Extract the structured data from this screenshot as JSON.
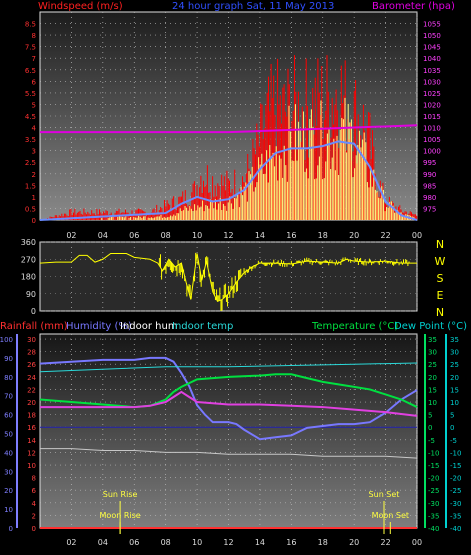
{
  "colors": {
    "wind": "#ff0000",
    "gust": "#ffff00",
    "avg": "#6a8cff",
    "baro": "#e000e0",
    "dir": "#ffff00",
    "rain": "#ff3030",
    "humidity": "#7878ff",
    "indoor_hum": "#c8c8c8",
    "indoor_temp": "#2ad8d8",
    "temp": "#00e040",
    "dew": "#e040e0",
    "axis_left": "#7f7fff",
    "axis_temp": "#00e060",
    "axis_dew": "#00d0d0"
  },
  "chart_data": [
    {
      "id": "wind",
      "type": "bar",
      "title": "24 hour graph Sat, 11 May 2013",
      "ylabel": "Windspeed (m/s)",
      "ylabel_right": "Barometer (hpa)",
      "ylim": [
        0,
        9
      ],
      "yticks": [
        0,
        0.5,
        1,
        1.5,
        2,
        2.5,
        3,
        3.5,
        4,
        4.5,
        5,
        5.5,
        6,
        6.5,
        7,
        7.5,
        8,
        8.5
      ],
      "y2lim": [
        970,
        1060
      ],
      "y2ticks": [
        975,
        980,
        985,
        990,
        995,
        1000,
        1005,
        1010,
        1015,
        1020,
        1025,
        1030,
        1035,
        1040,
        1045,
        1050,
        1055
      ],
      "xticks": [
        "02",
        "04",
        "06",
        "08",
        "10",
        "12",
        "14",
        "16",
        "18",
        "20",
        "22",
        "00"
      ],
      "xlim": [
        0,
        24
      ],
      "gust_envelope": [
        [
          0,
          0
        ],
        [
          2,
          0.5
        ],
        [
          4,
          0.5
        ],
        [
          6,
          0.5
        ],
        [
          7,
          0.5
        ],
        [
          8,
          0.9
        ],
        [
          9,
          1.3
        ],
        [
          9.8,
          1.8
        ],
        [
          10.3,
          3.0
        ],
        [
          11,
          2.5
        ],
        [
          12,
          2.2
        ],
        [
          13,
          2.6
        ],
        [
          13.5,
          3.6
        ],
        [
          14,
          5.0
        ],
        [
          14.5,
          6.5
        ],
        [
          15,
          7.2
        ],
        [
          15.5,
          6.8
        ],
        [
          16,
          7.3
        ],
        [
          16.5,
          7.0
        ],
        [
          17,
          7.2
        ],
        [
          17.5,
          7.4
        ],
        [
          18,
          7.5
        ],
        [
          18.5,
          7.8
        ],
        [
          19,
          8.5
        ],
        [
          19.5,
          7.2
        ],
        [
          20,
          6.8
        ],
        [
          20.5,
          6.3
        ],
        [
          21,
          4.8
        ],
        [
          21.5,
          2.5
        ],
        [
          22,
          1.2
        ],
        [
          23,
          0.6
        ],
        [
          24,
          0.3
        ]
      ],
      "speed_envelope": [
        [
          0,
          0
        ],
        [
          8,
          0.2
        ],
        [
          9,
          0.5
        ],
        [
          10,
          0.7
        ],
        [
          11,
          0.9
        ],
        [
          12,
          1.0
        ],
        [
          13,
          1.5
        ],
        [
          14,
          2.5
        ],
        [
          15,
          3.5
        ],
        [
          16,
          4.3
        ],
        [
          17,
          4.4
        ],
        [
          18,
          4.3
        ],
        [
          19,
          4.6
        ],
        [
          20,
          4.5
        ],
        [
          21,
          2.5
        ],
        [
          22,
          0.9
        ],
        [
          23,
          0.3
        ],
        [
          24,
          0.1
        ]
      ],
      "avg_envelope": [
        [
          0,
          0
        ],
        [
          8,
          0.3
        ],
        [
          9,
          0.7
        ],
        [
          10,
          1.0
        ],
        [
          11,
          0.8
        ],
        [
          12,
          0.9
        ],
        [
          13,
          1.3
        ],
        [
          14,
          2.2
        ],
        [
          15,
          2.9
        ],
        [
          16,
          3.1
        ],
        [
          17,
          3.1
        ],
        [
          18,
          3.2
        ],
        [
          19,
          3.4
        ],
        [
          20,
          3.3
        ],
        [
          21,
          2.3
        ],
        [
          22,
          0.8
        ],
        [
          23,
          0.2
        ],
        [
          24,
          0
        ]
      ],
      "barometer": [
        [
          0,
          1008
        ],
        [
          6,
          1008
        ],
        [
          12,
          1008
        ],
        [
          16,
          1009
        ],
        [
          20,
          1010
        ],
        [
          24,
          1011
        ]
      ]
    },
    {
      "id": "direction",
      "type": "line",
      "ylim": [
        0,
        360
      ],
      "yticks": [
        0,
        90,
        180,
        270,
        360
      ],
      "compass": [
        "N",
        "W",
        "S",
        "E",
        "N"
      ],
      "xlim": [
        0,
        24
      ],
      "points": [
        [
          0,
          250
        ],
        [
          1,
          255
        ],
        [
          2,
          255
        ],
        [
          2.5,
          290
        ],
        [
          3,
          290
        ],
        [
          3.5,
          255
        ],
        [
          4,
          270
        ],
        [
          4.5,
          300
        ],
        [
          5.5,
          300
        ],
        [
          6,
          280
        ],
        [
          7,
          270
        ],
        [
          7.5,
          250
        ],
        [
          7.8,
          210
        ],
        [
          8.2,
          270
        ],
        [
          8.6,
          230
        ],
        [
          9,
          250
        ],
        [
          9.3,
          150
        ],
        [
          9.6,
          60
        ],
        [
          10,
          300
        ],
        [
          10.3,
          160
        ],
        [
          10.6,
          260
        ],
        [
          11,
          100
        ],
        [
          11.3,
          50
        ],
        [
          11.6,
          60
        ],
        [
          12,
          90
        ],
        [
          12.5,
          150
        ],
        [
          13,
          200
        ],
        [
          13.5,
          230
        ],
        [
          14,
          250
        ],
        [
          15,
          250
        ],
        [
          16,
          245
        ],
        [
          17,
          260
        ],
        [
          18,
          255
        ],
        [
          19,
          250
        ],
        [
          19.5,
          270
        ],
        [
          20,
          260
        ],
        [
          21,
          255
        ],
        [
          22,
          260
        ],
        [
          23,
          250
        ],
        [
          24,
          250
        ]
      ]
    },
    {
      "id": "temperature",
      "type": "line",
      "title": "",
      "labels": {
        "rain": "Rainfall (mm)",
        "humidity": "Humidity (%)",
        "indoor_hum": "Indoor hum",
        "indoor_temp": "Indoor temp",
        "temp": "Temperature (°C)",
        "dew": "Dew Point (°C)"
      },
      "left_ticks": [
        0,
        10,
        20,
        30,
        40,
        50,
        60,
        70,
        80,
        90,
        100
      ],
      "rain_ticks": [
        0,
        2,
        4,
        6,
        8,
        10,
        12,
        14,
        16,
        18,
        20,
        22,
        24,
        26,
        28,
        30
      ],
      "temp_ticks": [
        -40,
        -35,
        -30,
        -25,
        -20,
        -15,
        -10,
        -5,
        0,
        5,
        10,
        15,
        20,
        25,
        30,
        35
      ],
      "ylim_temp": [
        -40,
        37
      ],
      "xlim": [
        0,
        24
      ],
      "events": [
        {
          "label": "Sun Rise",
          "x": 5.1
        },
        {
          "label": "Moon Rise",
          "x": 5.1
        },
        {
          "label": "Sun Set",
          "x": 21.9
        },
        {
          "label": "Moon Set",
          "x": 22.3
        }
      ],
      "series": [
        {
          "name": "Humidity",
          "key": "humidity",
          "axis": "pct",
          "points": [
            [
              0,
              87
            ],
            [
              2,
              88
            ],
            [
              4,
              89
            ],
            [
              6,
              89
            ],
            [
              7,
              90
            ],
            [
              8,
              90
            ],
            [
              8.5,
              88
            ],
            [
              9,
              82
            ],
            [
              9.5,
              75
            ],
            [
              10,
              65
            ],
            [
              10.5,
              60
            ],
            [
              11,
              56
            ],
            [
              12,
              56
            ],
            [
              12.5,
              55
            ],
            [
              13,
              52
            ],
            [
              14,
              47
            ],
            [
              15,
              48
            ],
            [
              16,
              49
            ],
            [
              17,
              53
            ],
            [
              18,
              54
            ],
            [
              19,
              55
            ],
            [
              20,
              55
            ],
            [
              21,
              56
            ],
            [
              22,
              61
            ],
            [
              23,
              68
            ],
            [
              24,
              73
            ]
          ]
        },
        {
          "name": "Indoor temp",
          "key": "indoor_temp",
          "axis": "temp",
          "points": [
            [
              0,
              22
            ],
            [
              4,
              23
            ],
            [
              8,
              24
            ],
            [
              12,
              24
            ],
            [
              16,
              24.5
            ],
            [
              20,
              25
            ],
            [
              24,
              25.5
            ]
          ]
        },
        {
          "name": "Temperature",
          "key": "temp",
          "axis": "temp",
          "points": [
            [
              0,
              11
            ],
            [
              2,
              10
            ],
            [
              4,
              9
            ],
            [
              6,
              8
            ],
            [
              7,
              8.5
            ],
            [
              8,
              11
            ],
            [
              8.5,
              14
            ],
            [
              9,
              16
            ],
            [
              10,
              19
            ],
            [
              11,
              19.5
            ],
            [
              12,
              20
            ],
            [
              14,
              20.5
            ],
            [
              15,
              21
            ],
            [
              16,
              21
            ],
            [
              17,
              19.5
            ],
            [
              18,
              18
            ],
            [
              19,
              17
            ],
            [
              20,
              16
            ],
            [
              21,
              15
            ],
            [
              22,
              13
            ],
            [
              23,
              11
            ],
            [
              24,
              8
            ]
          ]
        },
        {
          "name": "Dew Point",
          "key": "dew",
          "axis": "temp",
          "points": [
            [
              0,
              8
            ],
            [
              2,
              8
            ],
            [
              4,
              8
            ],
            [
              6,
              8
            ],
            [
              7,
              8.5
            ],
            [
              8,
              10
            ],
            [
              8.5,
              12
            ],
            [
              9,
              14
            ],
            [
              9.5,
              12
            ],
            [
              10,
              10
            ],
            [
              11,
              9.5
            ],
            [
              12,
              9
            ],
            [
              13,
              9
            ],
            [
              14,
              9
            ],
            [
              16,
              8.5
            ],
            [
              18,
              8
            ],
            [
              20,
              7
            ],
            [
              22,
              6
            ],
            [
              24,
              4.5
            ]
          ]
        },
        {
          "name": "Indoor hum",
          "key": "indoor_hum",
          "axis": "pct",
          "points": [
            [
              0,
              42
            ],
            [
              2,
              42
            ],
            [
              4,
              41
            ],
            [
              6,
              41
            ],
            [
              8,
              40
            ],
            [
              10,
              40
            ],
            [
              12,
              39
            ],
            [
              14,
              39
            ],
            [
              16,
              39
            ],
            [
              18,
              38
            ],
            [
              20,
              38
            ],
            [
              22,
              38
            ],
            [
              24,
              37
            ]
          ]
        },
        {
          "name": "Rainfall",
          "key": "rain",
          "axis": "rain",
          "points": [
            [
              0,
              0
            ],
            [
              24,
              0
            ]
          ]
        }
      ]
    }
  ]
}
